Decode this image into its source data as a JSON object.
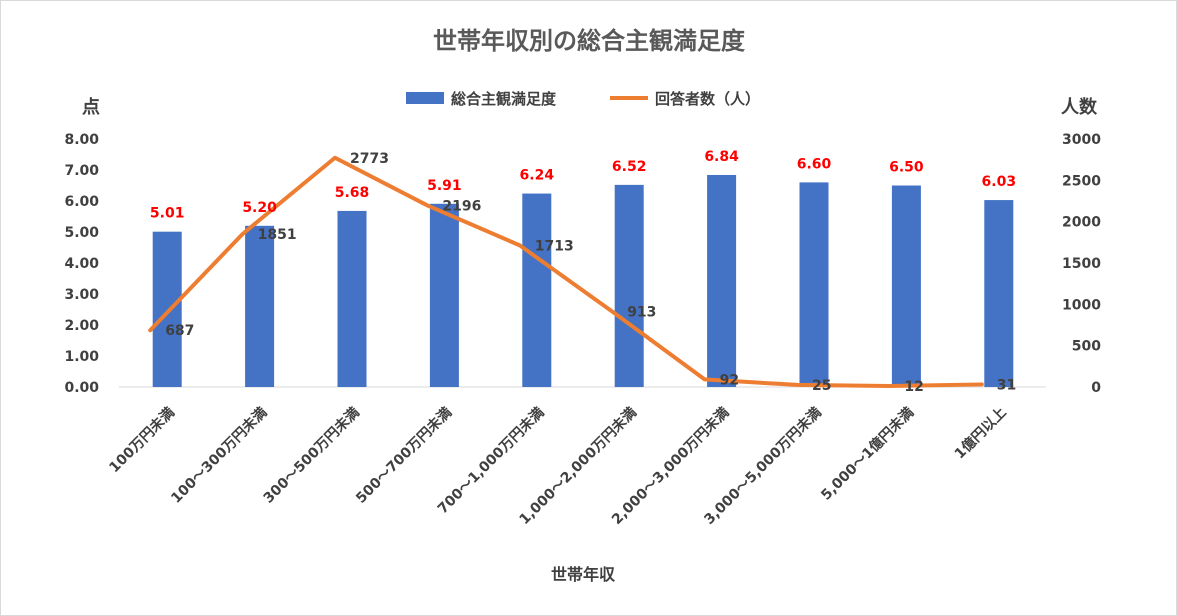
{
  "chart_data": {
    "type": "bar",
    "title": "世帯年収別の総合主観満足度",
    "xlabel": "世帯年収",
    "ylabel": "点",
    "y2label": "人数",
    "categories": [
      "100万円未満",
      "100～300万円未満",
      "300～500万円未満",
      "500～700万円未満",
      "700～1,000万円未満",
      "1,000～2,000万円未満",
      "2,000～3,000万円未満",
      "3,000～5,000万円未満",
      "5,000～1億円未満",
      "1億円以上"
    ],
    "series": [
      {
        "name": "総合主観満足度",
        "type": "bar",
        "axis": "left",
        "color": "#4472c4",
        "label_color": "#ff0000",
        "values": [
          5.01,
          5.2,
          5.68,
          5.91,
          6.24,
          6.52,
          6.84,
          6.6,
          6.5,
          6.03
        ],
        "labels": [
          "5.01",
          "5.20",
          "5.68",
          "5.91",
          "6.24",
          "6.52",
          "6.84",
          "6.60",
          "6.50",
          "6.03"
        ]
      },
      {
        "name": "回答者数（人）",
        "type": "line",
        "axis": "right",
        "color": "#ed7d31",
        "values": [
          687,
          1851,
          2773,
          2196,
          1713,
          913,
          92,
          25,
          12,
          31
        ],
        "labels": [
          "687",
          "1851",
          "2773",
          "2196",
          "1713",
          "913",
          "92",
          "25",
          "12",
          "31"
        ]
      }
    ],
    "ylim": [
      0,
      8
    ],
    "y2lim": [
      0,
      3000
    ],
    "yticks": [
      "0.00",
      "1.00",
      "2.00",
      "3.00",
      "4.00",
      "5.00",
      "6.00",
      "7.00",
      "8.00"
    ],
    "y2ticks": [
      "0",
      "500",
      "1000",
      "1500",
      "2000",
      "2500",
      "3000"
    ],
    "legend": "top-center",
    "grid": false
  }
}
